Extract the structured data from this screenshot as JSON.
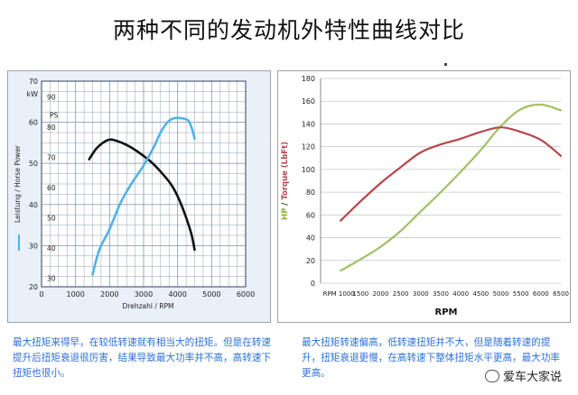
{
  "title": "两种不同的发动机外特性曲线对比",
  "captions": {
    "left": "最大扭矩来得早，在较低转速就有相当大的扭矩。但是在转速提升后扭矩衰退很厉害，结果导致最大功率并不高，高转速下扭矩也很小。",
    "right": "最大扭矩转速偏高，低转速扭矩并不大，但是随着转速的提升，扭矩衰退更慢，在高转速下整体扭矩水平更高，最大功率更高。"
  },
  "watermark": "爱车大家说",
  "colors": {
    "caption": "#2e6fd9",
    "torque_left": "#111111",
    "power_left": "#4fb3e8",
    "hp_right": "#a4c062",
    "torque_right": "#b5474b"
  },
  "chart_data": [
    {
      "type": "line",
      "xlabel": "Drehzahl / RPM",
      "ylabel": "Leistung / Horse Power",
      "ylabel_units": [
        "kW",
        "PS"
      ],
      "xlim": [
        0,
        6000
      ],
      "ylim": [
        20,
        70
      ],
      "x_ticks": [
        0,
        1000,
        2000,
        3000,
        4000,
        5000,
        6000
      ],
      "kw_ticks": [
        20,
        30,
        40,
        50,
        60,
        70
      ],
      "ps_ticks": [
        30,
        40,
        50,
        60,
        70,
        80,
        90
      ],
      "ps_label": "PS",
      "grid": true,
      "series": [
        {
          "key": "torque",
          "color": "#111111",
          "points": [
            [
              1400,
              51
            ],
            [
              1600,
              53.5
            ],
            [
              1800,
              55
            ],
            [
              2000,
              55.8
            ],
            [
              2200,
              55.5
            ],
            [
              2500,
              54.5
            ],
            [
              2800,
              53
            ],
            [
              3200,
              50.5
            ],
            [
              3500,
              48
            ],
            [
              3800,
              45
            ],
            [
              4000,
              42
            ],
            [
              4200,
              38
            ],
            [
              4400,
              33
            ],
            [
              4500,
              29
            ]
          ]
        },
        {
          "key": "power",
          "color": "#4fb3e8",
          "points": [
            [
              1500,
              23
            ],
            [
              1700,
              29
            ],
            [
              2000,
              34
            ],
            [
              2300,
              40
            ],
            [
              2600,
              44.5
            ],
            [
              3000,
              49.5
            ],
            [
              3300,
              54
            ],
            [
              3500,
              57.5
            ],
            [
              3700,
              60
            ],
            [
              3900,
              61
            ],
            [
              4100,
              61
            ],
            [
              4300,
              60.5
            ],
            [
              4400,
              59
            ],
            [
              4500,
              56
            ]
          ]
        }
      ]
    },
    {
      "type": "line",
      "title": "",
      "xlabel": "RPM",
      "ylabel_parts": [
        {
          "text": "HP",
          "color": "#8fb23a"
        },
        {
          "text": " / ",
          "color": "#333333"
        },
        {
          "text": "Torque (LbFt)",
          "color": "#b5474b"
        }
      ],
      "ylim": [
        0,
        180
      ],
      "y_ticks": [
        0,
        20,
        40,
        60,
        80,
        100,
        120,
        140,
        160,
        180
      ],
      "x_tick_labels": [
        "RPM 1000",
        "1500",
        "2000",
        "2500",
        "3000",
        "3500",
        "4000",
        "4500",
        "5000",
        "5500",
        "6000",
        "6500"
      ],
      "xlim": [
        500,
        6500
      ],
      "grid": true,
      "series": [
        {
          "key": "hp",
          "color": "#a4c062",
          "points": [
            [
              1000,
              11
            ],
            [
              1500,
              21
            ],
            [
              2000,
              32
            ],
            [
              2500,
              46
            ],
            [
              3000,
              63
            ],
            [
              3500,
              80
            ],
            [
              4000,
              98
            ],
            [
              4500,
              117
            ],
            [
              5000,
              138
            ],
            [
              5500,
              153
            ],
            [
              6000,
              157
            ],
            [
              6500,
              152
            ]
          ]
        },
        {
          "key": "torque",
          "color": "#b5474b",
          "points": [
            [
              1000,
              55
            ],
            [
              1500,
              72
            ],
            [
              2000,
              88
            ],
            [
              2500,
              102
            ],
            [
              3000,
              115
            ],
            [
              3500,
              122
            ],
            [
              4000,
              127
            ],
            [
              4500,
              133
            ],
            [
              5000,
              137
            ],
            [
              5500,
              133
            ],
            [
              6000,
              126
            ],
            [
              6500,
              112
            ]
          ]
        }
      ]
    }
  ]
}
